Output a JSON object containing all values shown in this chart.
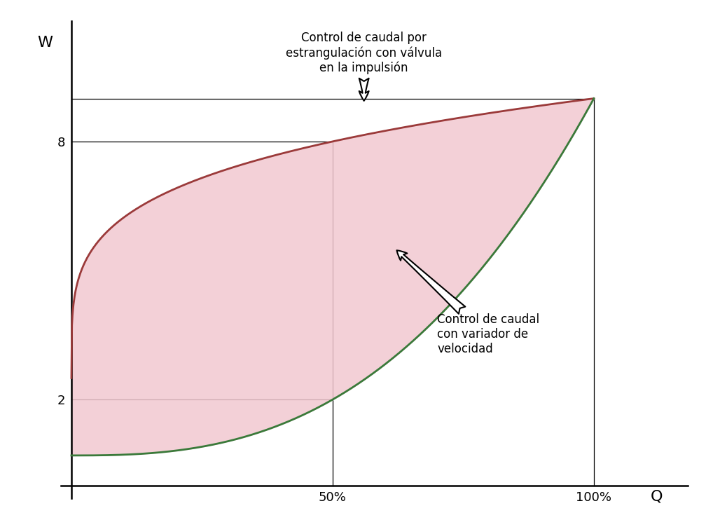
{
  "title": "",
  "xlabel": "Q",
  "ylabel": "W",
  "xlim": [
    -0.02,
    1.18
  ],
  "ylim": [
    -0.3,
    10.8
  ],
  "x_ticks": [
    0.5,
    1.0
  ],
  "x_tick_labels": [
    "50%",
    "100%"
  ],
  "y_ticks": [
    2,
    8
  ],
  "y_tick_labels": [
    "2",
    "8"
  ],
  "vline_50": 0.5,
  "vline_100": 1.0,
  "hline_8": 8.0,
  "hline_9": 9.0,
  "hline_2": 2.0,
  "red_color": "#9b3a3a",
  "green_color": "#3a7a3a",
  "fill_color": "#f2c8d0",
  "fill_alpha": 0.85,
  "annotation_top_text": "Control de caudal por\nestrangulación con válvula\nen la impulsión",
  "annotation_bottom_text": "Control de caudal\ncon variador de\nvelocidad",
  "background_color": "#ffffff",
  "font_size_labels": 14,
  "font_size_ticks": 13,
  "font_size_annotations": 12
}
